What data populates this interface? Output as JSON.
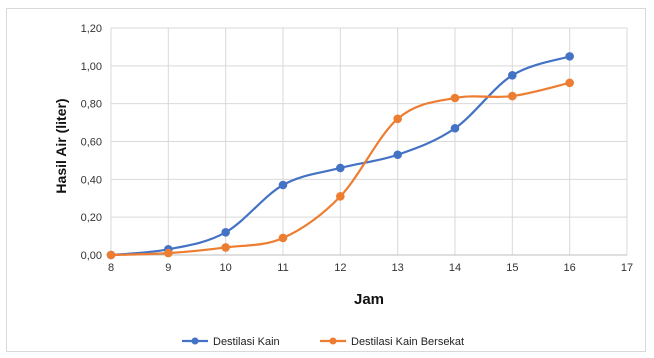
{
  "chart_data": {
    "type": "line",
    "title": "",
    "xlabel": "Jam",
    "ylabel": "Hasil  Air (liter)",
    "xlim": [
      8,
      17
    ],
    "ylim": [
      0,
      1.2
    ],
    "x_ticks": [
      "8",
      "9",
      "10",
      "11",
      "12",
      "13",
      "14",
      "15",
      "16",
      "17"
    ],
    "y_ticks": [
      "0,00",
      "0,20",
      "0,40",
      "0,60",
      "0,80",
      "1,00",
      "1,20"
    ],
    "grid": true,
    "legend_position": "bottom",
    "series": [
      {
        "name": "Destilasi Kain",
        "color": "#4472c4",
        "x": [
          8,
          9,
          10,
          11,
          12,
          13,
          14,
          15,
          16
        ],
        "y": [
          0.0,
          0.03,
          0.12,
          0.37,
          0.46,
          0.53,
          0.67,
          0.95,
          1.05
        ]
      },
      {
        "name": "Destilasi Kain Bersekat",
        "color": "#ed7d31",
        "x": [
          8,
          9,
          10,
          11,
          12,
          13,
          14,
          15,
          16
        ],
        "y": [
          0.0,
          0.01,
          0.04,
          0.09,
          0.31,
          0.72,
          0.83,
          0.84,
          0.91
        ]
      }
    ]
  }
}
